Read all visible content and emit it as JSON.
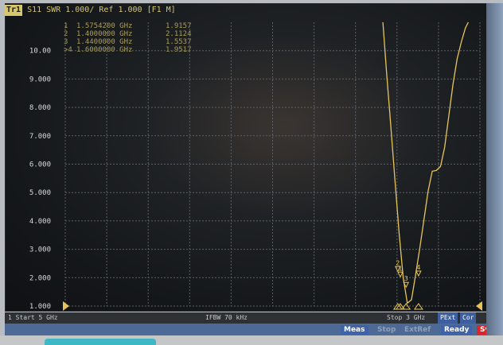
{
  "header": {
    "trace_id": "Tr1",
    "text": "S11  SWR 1.000/ Ref 1.000 [F1 M]"
  },
  "markers": [
    {
      "id": "1",
      "freq": "1.5754200 GHz",
      "value": "1.9157"
    },
    {
      "id": "2",
      "freq": "1.4000000 GHz",
      "value": "2.1124"
    },
    {
      "id": "3",
      "freq": "1.4400000 GHz",
      "value": "1.5537"
    },
    {
      "id": ">4",
      "freq": "1.6000000 GHz",
      "value": "1.9517"
    }
  ],
  "footer": {
    "start": "1  Start 5 GHz",
    "ifbw": "IFBW 70 kHz",
    "stop": "Stop 3 GHz",
    "pext": "PExt",
    "cor": "Cor"
  },
  "statusbar": {
    "meas": "Meas",
    "stop": "Stop",
    "extref": "ExtRef",
    "ready": "Ready",
    "svc": "Svc"
  },
  "colors": {
    "trace": "#e6c45a",
    "grid": "#5a5f65",
    "label": "#d8d8d8"
  },
  "chart_data": {
    "type": "line",
    "title": "S11  SWR 1.000/ Ref 1.000 [F1 M]",
    "xlabel": "",
    "ylabel": "",
    "xlim": [
      0,
      10
    ],
    "ylim": [
      1,
      11
    ],
    "y_tick_labels": [
      "1.000",
      "2.000",
      "3.000",
      "4.000",
      "5.000",
      "6.000",
      "7.000",
      "8.000",
      "9.000",
      "10.00"
    ],
    "grid": true,
    "series": [
      {
        "x": [
          7.66,
          7.75,
          7.85,
          7.95,
          8.05,
          8.15,
          8.25,
          8.35,
          8.45,
          8.55,
          8.65,
          8.75,
          8.85,
          8.95,
          9.05,
          9.15,
          9.25,
          9.35,
          9.45,
          9.55,
          9.65,
          9.72
        ],
        "values": [
          11.0,
          9.2,
          7.35,
          5.45,
          3.6,
          2.0,
          1.1,
          1.22,
          2.1,
          3.05,
          4.05,
          5.05,
          5.75,
          5.78,
          5.92,
          6.6,
          7.7,
          8.8,
          9.7,
          10.3,
          10.8,
          11.0
        ]
      }
    ],
    "marker_points": [
      {
        "label": "1",
        "x": 8.08,
        "y": 1.9157
      },
      {
        "label": "2",
        "x": 8.02,
        "y": 2.1124
      },
      {
        "label": "3",
        "x": 8.22,
        "y": 1.5537
      },
      {
        "label": "4",
        "x": 8.52,
        "y": 1.9517
      }
    ],
    "ref_level": 1.0
  }
}
